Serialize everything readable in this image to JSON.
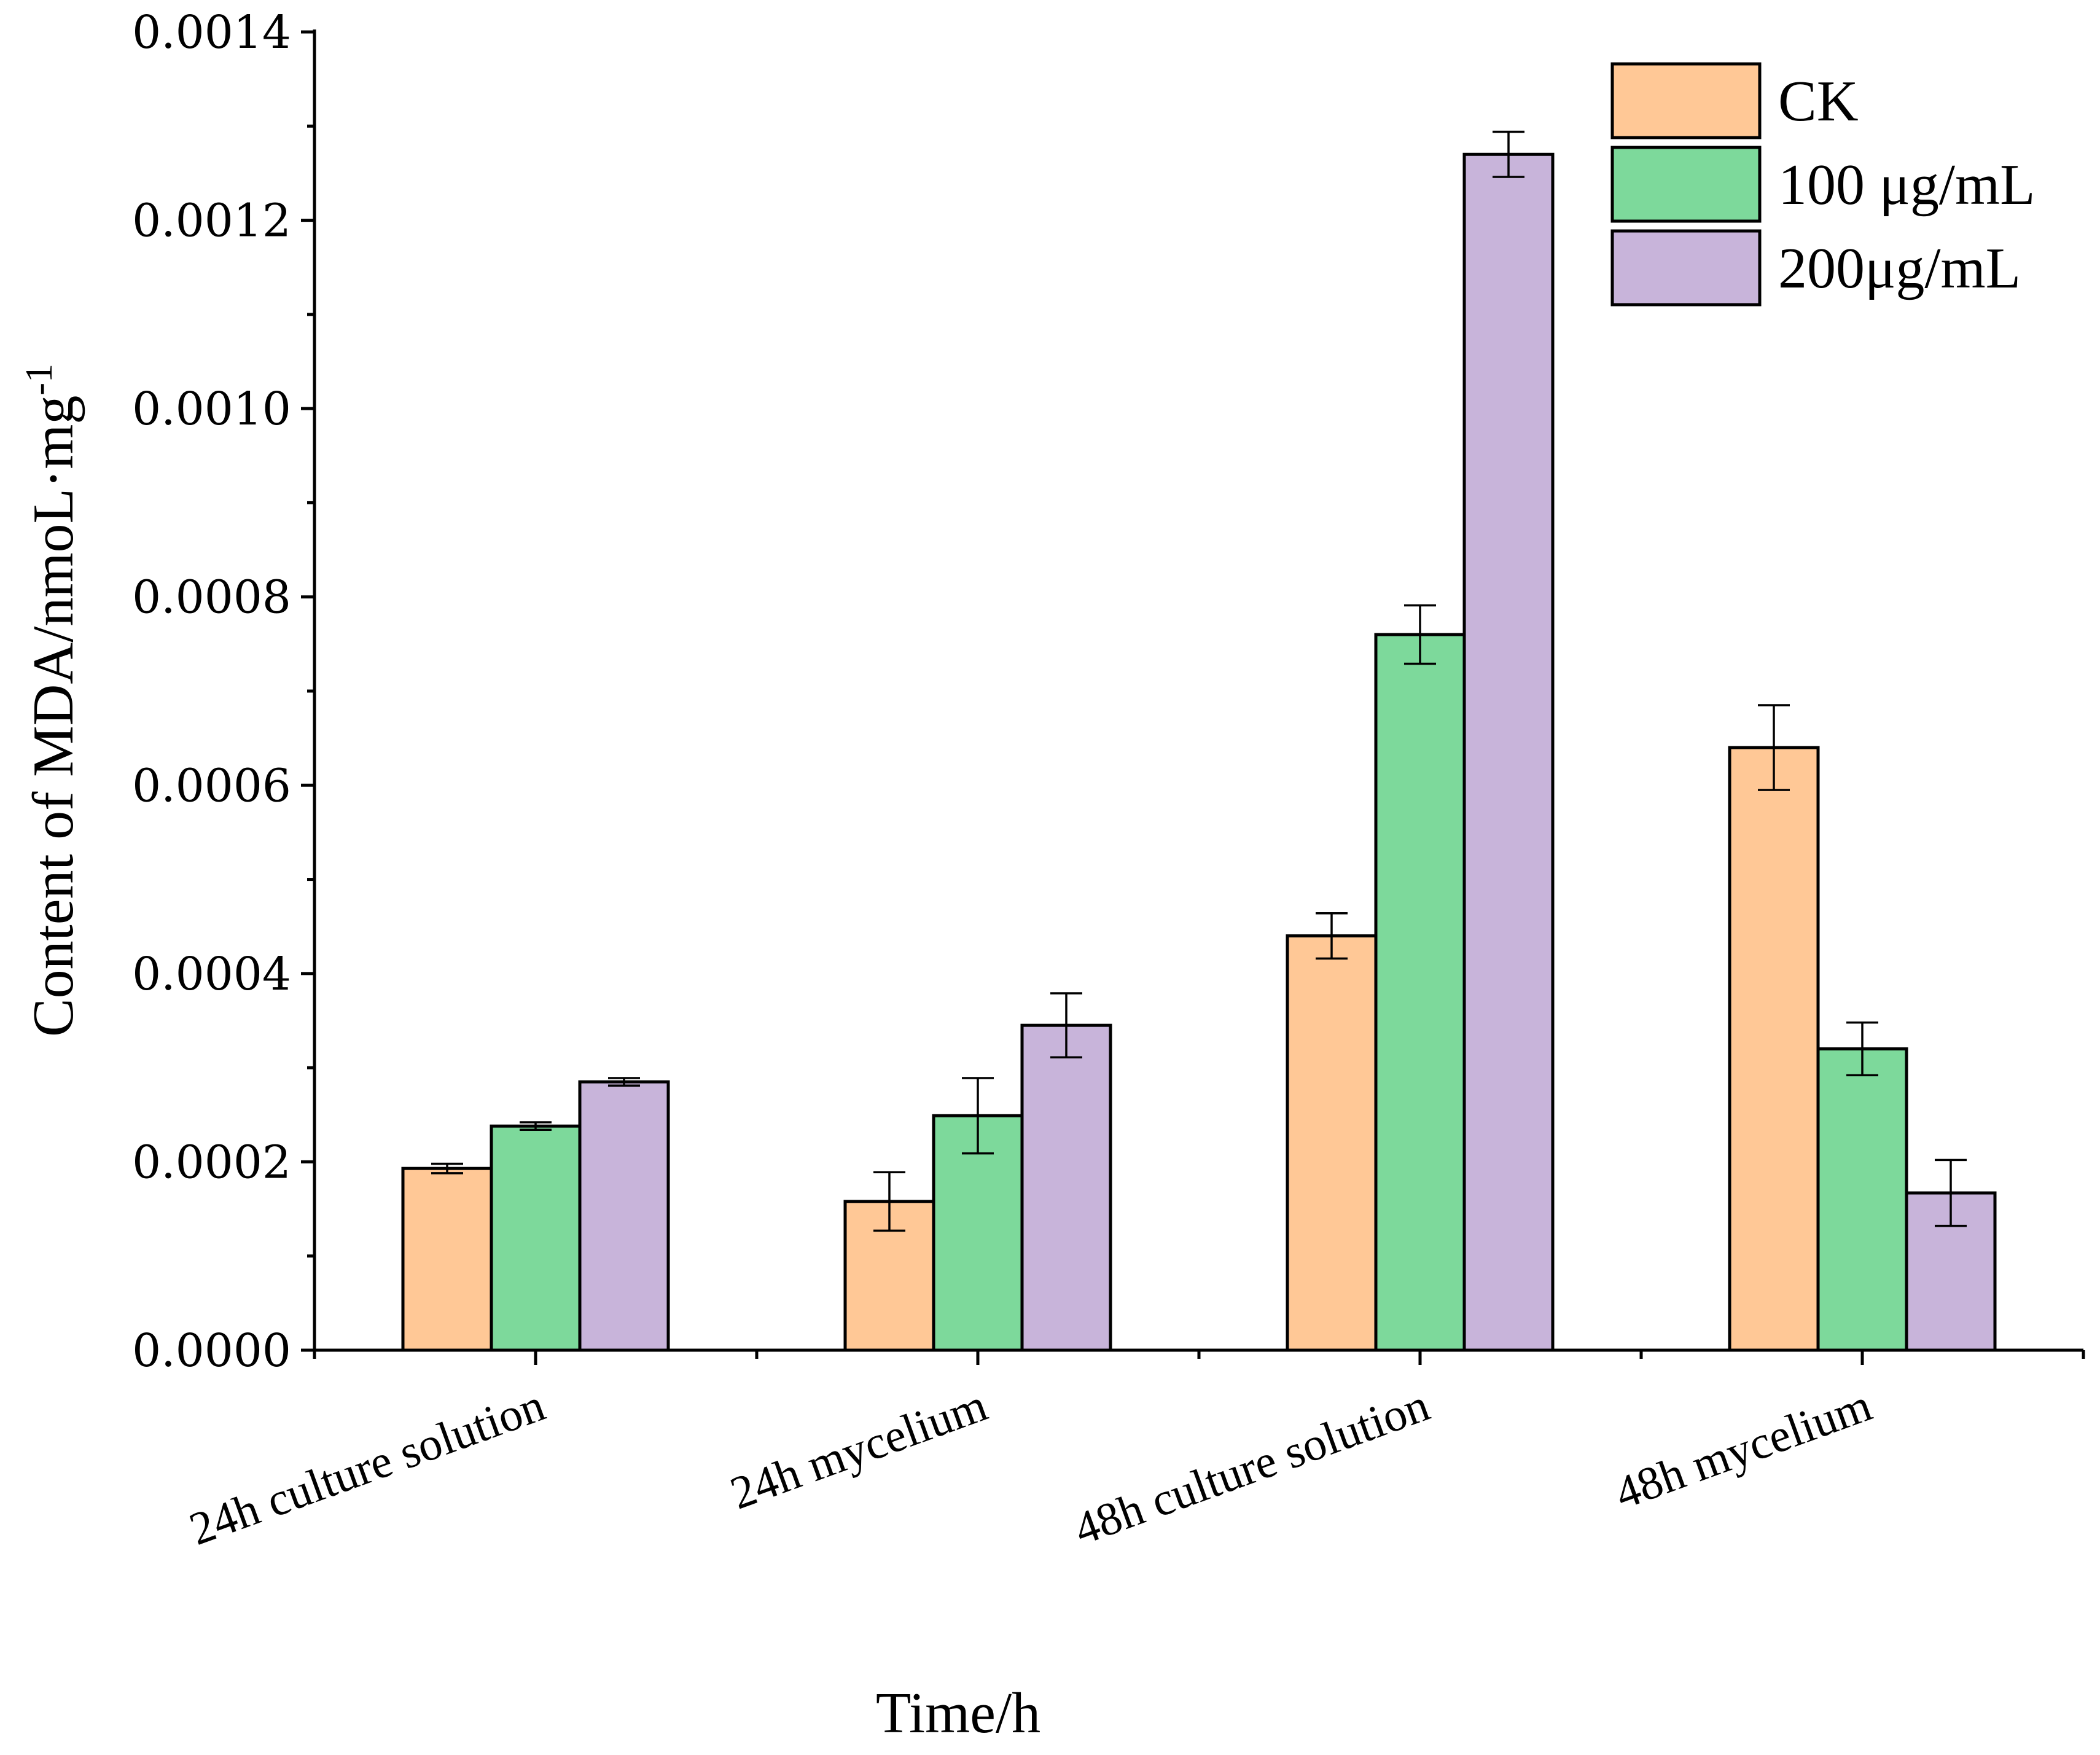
{
  "chart_data": {
    "type": "bar",
    "title": "",
    "xlabel": "Time/h",
    "ylabel": "Content of MDA/nmoL·mg",
    "ylabel_superscript": "-1",
    "categories": [
      "24h culture solution",
      "24h mycelium",
      "48h culture solution",
      "48h mycelium"
    ],
    "ylim": [
      0,
      0.0014
    ],
    "yticks": [
      0,
      0.0002,
      0.0004,
      0.0006,
      0.0008,
      0.001,
      0.0012,
      0.0014
    ],
    "ytick_labels": [
      "0.0000",
      "0.0002",
      "0.0004",
      "0.0006",
      "0.0008",
      "0.0010",
      "0.0012",
      "0.0014"
    ],
    "legend_position": "top-right",
    "series": [
      {
        "name": "CK",
        "color": "#FFC896",
        "values": [
          0.000193,
          0.000158,
          0.00044,
          0.00064
        ],
        "errors": [
          5e-06,
          3.1e-05,
          2.4e-05,
          4.5e-05
        ]
      },
      {
        "name": "100 μg/mL",
        "color": "#7DD99B",
        "values": [
          0.000238,
          0.000249,
          0.00076,
          0.00032
        ],
        "errors": [
          4e-06,
          4e-05,
          3.1e-05,
          2.8e-05
        ]
      },
      {
        "name": "200μg/mL",
        "color": "#C8B4DA",
        "values": [
          0.000285,
          0.000345,
          0.00127,
          0.000167
        ],
        "errors": [
          4e-06,
          3.4e-05,
          2.4e-05,
          3.5e-05
        ]
      }
    ]
  }
}
